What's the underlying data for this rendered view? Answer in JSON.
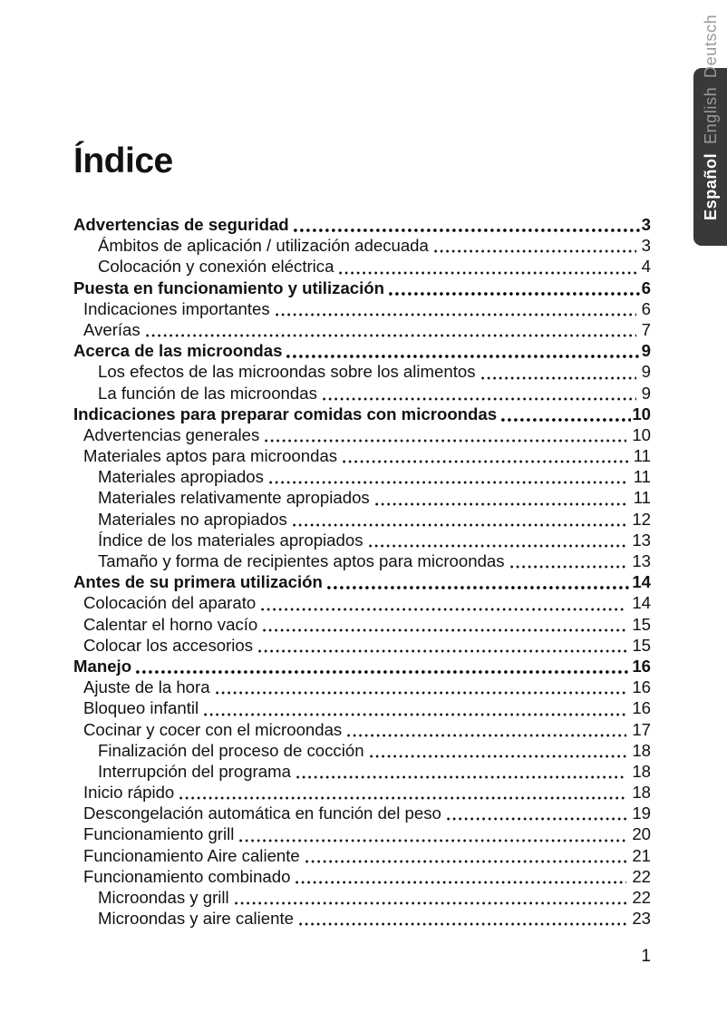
{
  "page": {
    "title": "Índice",
    "page_number": "1"
  },
  "colors": {
    "text": "#121212",
    "tab_bg": "#38393b",
    "tab_inactive": "#9a9a9a",
    "tab_active": "#ffffff"
  },
  "sidebar_tabs": {
    "items": [
      {
        "label": "Deutsch",
        "active": false
      },
      {
        "label": "English",
        "active": false
      },
      {
        "label": "Español",
        "active": true
      }
    ]
  },
  "toc": {
    "entries": [
      {
        "label": "Advertencias de seguridad",
        "page": "3",
        "level": 0,
        "bold": true
      },
      {
        "label": "Ámbitos de aplicación / utilización adecuada",
        "page": "3",
        "level": 2,
        "bold": false
      },
      {
        "label": "Colocación y conexión eléctrica",
        "page": "4",
        "level": 2,
        "bold": false
      },
      {
        "label": "Puesta en funcionamiento y utilización",
        "page": "6",
        "level": 0,
        "bold": true
      },
      {
        "label": "Indicaciones importantes",
        "page": "6",
        "level": 1,
        "bold": false
      },
      {
        "label": "Averías",
        "page": "7",
        "level": 1,
        "bold": false
      },
      {
        "label": "Acerca de las microondas",
        "page": "9",
        "level": 0,
        "bold": true
      },
      {
        "label": "Los efectos de las microondas sobre los alimentos",
        "page": "9",
        "level": 2,
        "bold": false
      },
      {
        "label": "La función de las microondas",
        "page": "9",
        "level": 2,
        "bold": false
      },
      {
        "label": "Indicaciones para preparar comidas con microondas",
        "page": "10",
        "level": 0,
        "bold": true
      },
      {
        "label": "Advertencias generales",
        "page": "10",
        "level": 1,
        "bold": false
      },
      {
        "label": "Materiales aptos para microondas",
        "page": "11",
        "level": 1,
        "bold": false
      },
      {
        "label": "Materiales apropiados",
        "page": "11",
        "level": 2,
        "bold": false
      },
      {
        "label": "Materiales relativamente apropiados",
        "page": "11",
        "level": 2,
        "bold": false
      },
      {
        "label": "Materiales no apropiados",
        "page": "12",
        "level": 2,
        "bold": false
      },
      {
        "label": "Índice de los materiales apropiados",
        "page": "13",
        "level": 2,
        "bold": false
      },
      {
        "label": "Tamaño y forma de recipientes aptos para microondas",
        "page": "13",
        "level": 2,
        "bold": false
      },
      {
        "label": "Antes de su primera utilización",
        "page": "14",
        "level": 0,
        "bold": true
      },
      {
        "label": "Colocación del aparato",
        "page": "14",
        "level": 1,
        "bold": false
      },
      {
        "label": "Calentar el horno vacío",
        "page": "15",
        "level": 1,
        "bold": false
      },
      {
        "label": "Colocar los accesorios",
        "page": "15",
        "level": 1,
        "bold": false
      },
      {
        "label": "Manejo",
        "page": "16",
        "level": 0,
        "bold": true
      },
      {
        "label": "Ajuste de la hora",
        "page": "16",
        "level": 1,
        "bold": false
      },
      {
        "label": "Bloqueo infantil",
        "page": "16",
        "level": 1,
        "bold": false
      },
      {
        "label": "Cocinar y cocer con el microondas",
        "page": "17",
        "level": 1,
        "bold": false
      },
      {
        "label": "Finalización del proceso de cocción",
        "page": "18",
        "level": 2,
        "bold": false
      },
      {
        "label": "Interrupción del programa",
        "page": "18",
        "level": 2,
        "bold": false
      },
      {
        "label": "Inicio rápido",
        "page": "18",
        "level": 1,
        "bold": false
      },
      {
        "label": "Descongelación automática en función del peso",
        "page": "19",
        "level": 1,
        "bold": false
      },
      {
        "label": "Funcionamiento grill",
        "page": "20",
        "level": 1,
        "bold": false
      },
      {
        "label": "Funcionamiento Aire caliente",
        "page": "21",
        "level": 1,
        "bold": false
      },
      {
        "label": "Funcionamiento combinado",
        "page": "22",
        "level": 1,
        "bold": false
      },
      {
        "label": "Microondas y grill",
        "page": "22",
        "level": 2,
        "bold": false
      },
      {
        "label": "Microondas y aire caliente",
        "page": "23",
        "level": 2,
        "bold": false
      }
    ]
  }
}
